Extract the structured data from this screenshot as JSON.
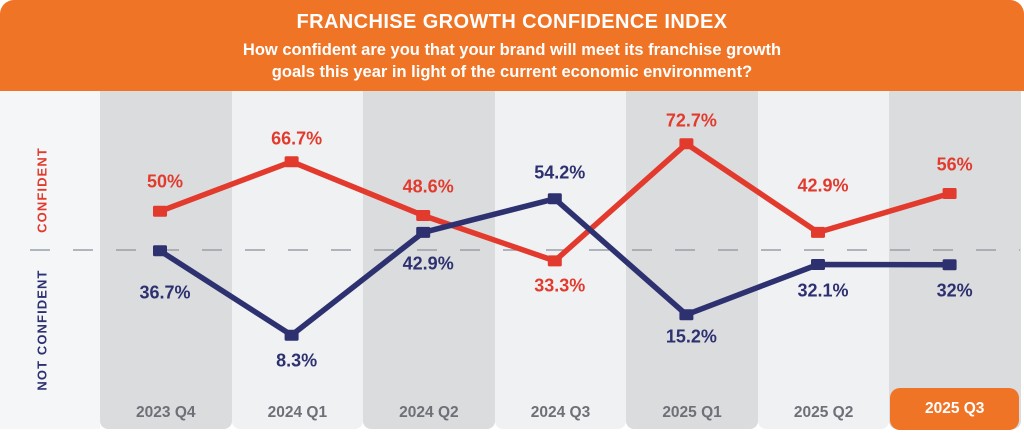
{
  "header": {
    "title": "FRANCHISE GROWTH CONFIDENCE INDEX",
    "subtitle_line1": "How confident are you that your brand will meet its franchise growth",
    "subtitle_line2": "goals this year in light of the current economic environment?"
  },
  "axis": {
    "confident_label": "CONFIDENT",
    "not_confident_label": "NOT CONFIDENT"
  },
  "colors": {
    "header_bg": "#EF7426",
    "header_text": "#FFFFFF",
    "confident": "#E23B2E",
    "not_confident": "#2E3170",
    "band_dark": "#DBDCDE",
    "band_light": "#F0F1F3",
    "left_margin_bg": "#F4F6F8",
    "quarter_label": "#6D7076",
    "divider": "#99A0A9",
    "highlight_chip_bg": "#EF7426",
    "highlight_chip_text": "#FFFFFF"
  },
  "chart_data": {
    "type": "line",
    "title": "FRANCHISE GROWTH CONFIDENCE INDEX",
    "subtitle": "How confident are you that your brand will meet its franchise growth goals this year in light of the current economic environment?",
    "categories": [
      "2023 Q4",
      "2024 Q1",
      "2024 Q2",
      "2024 Q3",
      "2025 Q1",
      "2025 Q2",
      "2025 Q3"
    ],
    "series": [
      {
        "name": "Confident",
        "color": "#E23B2E",
        "values": [
          50,
          66.7,
          48.6,
          33.3,
          72.7,
          42.9,
          56
        ],
        "labels": [
          "50%",
          "66.7%",
          "48.6%",
          "33.3%",
          "72.7%",
          "42.9%",
          "56%"
        ],
        "label_dy": [
          -29,
          -23,
          -28,
          25,
          -23,
          -46,
          -28
        ]
      },
      {
        "name": "Not Confident",
        "color": "#2E3170",
        "values": [
          36.7,
          8.3,
          42.9,
          54.2,
          15.2,
          32.1,
          32
        ],
        "labels": [
          "36.7%",
          "8.3%",
          "42.9%",
          "54.2%",
          "15.2%",
          "32.1%",
          "32%"
        ],
        "label_dy": [
          42,
          26,
          32,
          -26,
          22,
          27,
          26
        ]
      }
    ],
    "highlighted_category": "2025 Q3",
    "ylim": [
      0,
      100
    ],
    "grid": false,
    "legend_position": "left-vertical",
    "annotations": "horizontal dashed divider between CONFIDENT and NOT CONFIDENT zones"
  }
}
